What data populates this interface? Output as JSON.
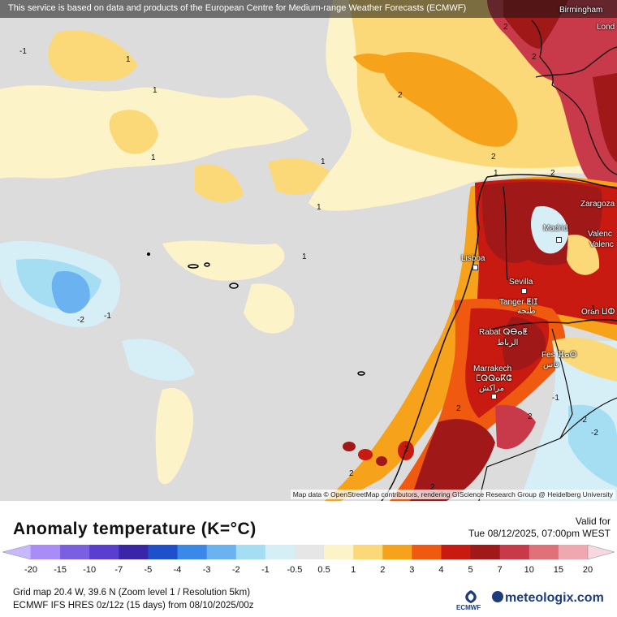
{
  "header": {
    "notice": "This service is based on data and products of the European Centre for Medium-range Weather Forecasts (ECMWF)"
  },
  "map": {
    "attribution": "Map data © OpenStreetMap contributors, rendering GIScience Research Group @ Heidelberg University",
    "cities": [
      {
        "name": "Birmingham"
      },
      {
        "name": "Lond"
      },
      {
        "name": "Zaragoza"
      },
      {
        "name": "Madrid"
      },
      {
        "name": "Valenc"
      },
      {
        "name": "Valenc"
      },
      {
        "name": "Lisboa"
      },
      {
        "name": "Sevilla"
      },
      {
        "name": "Tanger ⵟⵏⵊ"
      },
      {
        "name": "طنجة"
      },
      {
        "name": "Oran ⵡⵀ"
      },
      {
        "name": "Rabat ⵕⴱⴰⵟ"
      },
      {
        "name": "الرباط"
      },
      {
        "name": "Fes ⴼⴰⵙ"
      },
      {
        "name": "فاس"
      },
      {
        "name": "Marrakech"
      },
      {
        "name": "ⵎⵕⵕⴰⴽⵛ"
      },
      {
        "name": "مراكش"
      }
    ],
    "contour_labels": [
      "-1",
      "1",
      "1",
      "1",
      "1",
      "1",
      "1",
      "1",
      "1",
      "2",
      "2",
      "2",
      "2",
      "2",
      "2",
      "-2",
      "-1",
      "-2",
      "-2",
      "-1",
      "2",
      "2",
      "2",
      "2"
    ]
  },
  "legend": {
    "title": "Anomaly temperature (K=°C)",
    "valid_label": "Valid for",
    "valid_time": "Tue 08/12/2025, 07:00pm WEST",
    "colors": [
      "#a98cf5",
      "#7a5fe0",
      "#5a3ed0",
      "#3a24a8",
      "#1e50cc",
      "#3a88e8",
      "#6bb3f0",
      "#a5ddf2",
      "#d6eef6",
      "#e6e6e6",
      "#fdf3c8",
      "#fbd978",
      "#f6a21a",
      "#f05a10",
      "#c81a10",
      "#a01818",
      "#c83a4a",
      "#e0707a",
      "#f0a8b0"
    ],
    "ticks": [
      "-20",
      "-15",
      "-10",
      "-7",
      "-5",
      "-4",
      "-3",
      "-2",
      "-1",
      "-0.5",
      "0.5",
      "1",
      "2",
      "3",
      "4",
      "5",
      "7",
      "10",
      "15",
      "20"
    ]
  },
  "footer": {
    "grid_info": "Grid map 20.4 W, 39.6 N (Zoom level 1 / Resolution 5km)",
    "model_info": "ECMWF IFS HRES 0z/12z (15 days)  from  08/10/2025/00z",
    "ecmwf_logo": "ECMWF",
    "brand": "meteologix.com"
  }
}
